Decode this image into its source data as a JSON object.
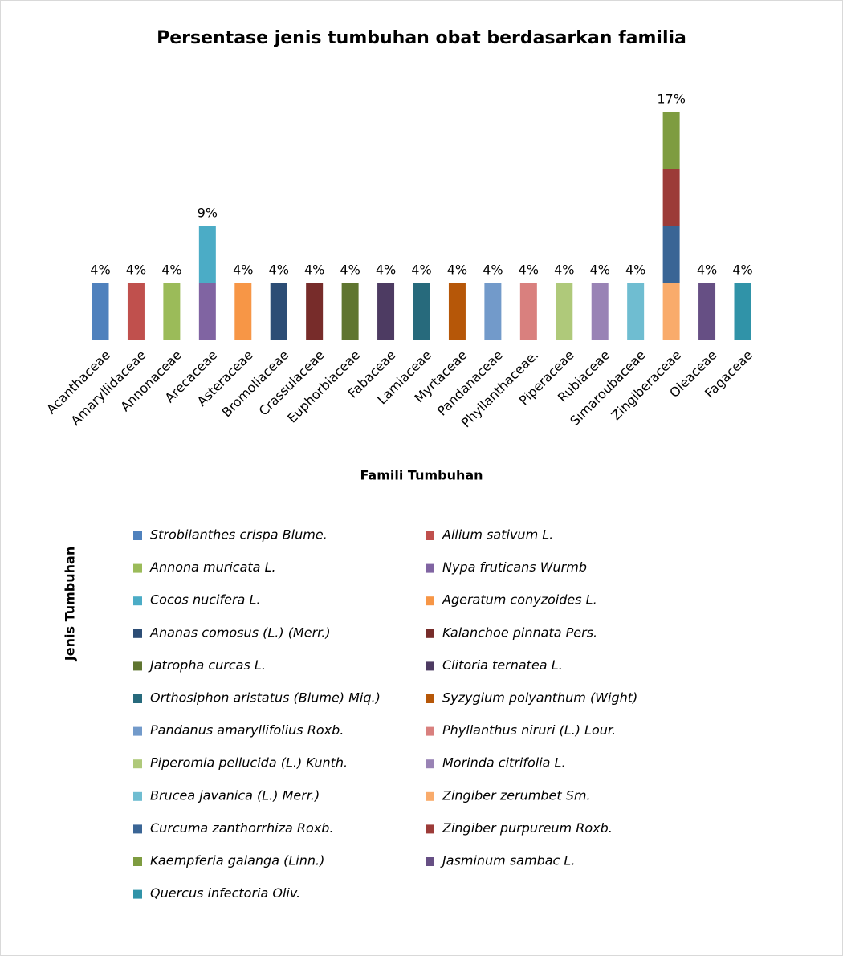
{
  "chart_data": {
    "type": "stacked_bar",
    "title": "Persentase jenis tumbuhan obat berdasarkan familia",
    "x_label": "Famili Tumbuhan",
    "legend_title": "Jenis Tumbuhan",
    "categories": [
      "Acanthaceae",
      "Amaryllidaceae",
      "Annonaceae",
      "Arecaceae",
      "Asteraceae",
      "Bromoliaceae",
      "Crassulaceae",
      "Euphorbiaceae",
      "Fabaceae",
      "Lamiaceae",
      "Myrtaceae",
      "Pandanaceae",
      "Phyllanthaceae.",
      "Piperaceae",
      "Rubiaceae",
      "Simaroubaceae",
      "Zingiberaceae",
      "Oleaceae",
      "Fagaceae"
    ],
    "total_labels": [
      "4%",
      "4%",
      "4%",
      "9%",
      "4%",
      "4%",
      "4%",
      "4%",
      "4%",
      "4%",
      "4%",
      "4%",
      "4%",
      "4%",
      "4%",
      "4%",
      "17%",
      "4%",
      "4%"
    ],
    "series": [
      {
        "name": "Strobilanthes crispa Blume.",
        "color": "#4f81bd",
        "values": [
          4.35,
          null,
          null,
          null,
          null,
          null,
          null,
          null,
          null,
          null,
          null,
          null,
          null,
          null,
          null,
          null,
          null,
          null,
          null
        ]
      },
      {
        "name": "Allium sativum L.",
        "color": "#c0504d",
        "values": [
          null,
          4.35,
          null,
          null,
          null,
          null,
          null,
          null,
          null,
          null,
          null,
          null,
          null,
          null,
          null,
          null,
          null,
          null,
          null
        ]
      },
      {
        "name": "Annona muricata L.",
        "color": "#9bbb59",
        "values": [
          null,
          null,
          4.35,
          null,
          null,
          null,
          null,
          null,
          null,
          null,
          null,
          null,
          null,
          null,
          null,
          null,
          null,
          null,
          null
        ]
      },
      {
        "name": "Nypa fruticans Wurmb",
        "color": "#8064a2",
        "values": [
          null,
          null,
          null,
          4.35,
          null,
          null,
          null,
          null,
          null,
          null,
          null,
          null,
          null,
          null,
          null,
          null,
          null,
          null,
          null
        ]
      },
      {
        "name": "Cocos nucifera L.",
        "color": "#4bacc6",
        "values": [
          null,
          null,
          null,
          4.35,
          null,
          null,
          null,
          null,
          null,
          null,
          null,
          null,
          null,
          null,
          null,
          null,
          null,
          null,
          null
        ]
      },
      {
        "name": "Ageratum conyzoides L.",
        "color": "#f79646",
        "values": [
          null,
          null,
          null,
          null,
          4.35,
          null,
          null,
          null,
          null,
          null,
          null,
          null,
          null,
          null,
          null,
          null,
          null,
          null,
          null
        ]
      },
      {
        "name": "Ananas comosus (L.) (Merr.)",
        "color": "#2c4d75",
        "values": [
          null,
          null,
          null,
          null,
          null,
          4.35,
          null,
          null,
          null,
          null,
          null,
          null,
          null,
          null,
          null,
          null,
          null,
          null,
          null
        ]
      },
      {
        "name": "Kalanchoe pinnata Pers.",
        "color": "#772c2a",
        "values": [
          null,
          null,
          null,
          null,
          null,
          null,
          4.35,
          null,
          null,
          null,
          null,
          null,
          null,
          null,
          null,
          null,
          null,
          null,
          null
        ]
      },
      {
        "name": "Jatropha curcas L.",
        "color": "#5f7530",
        "values": [
          null,
          null,
          null,
          null,
          null,
          null,
          null,
          4.35,
          null,
          null,
          null,
          null,
          null,
          null,
          null,
          null,
          null,
          null,
          null
        ]
      },
      {
        "name": "Clitoria ternatea L.",
        "color": "#4d3b62",
        "values": [
          null,
          null,
          null,
          null,
          null,
          null,
          null,
          null,
          4.35,
          null,
          null,
          null,
          null,
          null,
          null,
          null,
          null,
          null,
          null
        ]
      },
      {
        "name": "Orthosiphon aristatus (Blume) Miq.)",
        "color": "#276a7c",
        "values": [
          null,
          null,
          null,
          null,
          null,
          null,
          null,
          null,
          null,
          4.35,
          null,
          null,
          null,
          null,
          null,
          null,
          null,
          null,
          null
        ]
      },
      {
        "name": "Syzygium polyanthum (Wight)",
        "color": "#b65708",
        "values": [
          null,
          null,
          null,
          null,
          null,
          null,
          null,
          null,
          null,
          null,
          4.35,
          null,
          null,
          null,
          null,
          null,
          null,
          null,
          null
        ]
      },
      {
        "name": "Pandanus amaryllifolius Roxb.",
        "color": "#729aca",
        "values": [
          null,
          null,
          null,
          null,
          null,
          null,
          null,
          null,
          null,
          null,
          null,
          4.35,
          null,
          null,
          null,
          null,
          null,
          null,
          null
        ]
      },
      {
        "name": "Phyllanthus niruri (L.) Lour.",
        "color": "#d9807e",
        "values": [
          null,
          null,
          null,
          null,
          null,
          null,
          null,
          null,
          null,
          null,
          null,
          null,
          4.35,
          null,
          null,
          null,
          null,
          null,
          null
        ]
      },
      {
        "name": "Piperomia pellucida (L.) Kunth.",
        "color": "#afc97a",
        "values": [
          null,
          null,
          null,
          null,
          null,
          null,
          null,
          null,
          null,
          null,
          null,
          null,
          null,
          4.35,
          null,
          null,
          null,
          null,
          null
        ]
      },
      {
        "name": "Morinda citrifolia L.",
        "color": "#9983b5",
        "values": [
          null,
          null,
          null,
          null,
          null,
          null,
          null,
          null,
          null,
          null,
          null,
          null,
          null,
          null,
          4.35,
          null,
          null,
          null,
          null
        ]
      },
      {
        "name": "Brucea javanica (L.) Merr.)",
        "color": "#6fbdd1",
        "values": [
          null,
          null,
          null,
          null,
          null,
          null,
          null,
          null,
          null,
          null,
          null,
          null,
          null,
          null,
          null,
          4.35,
          null,
          null,
          null
        ]
      },
      {
        "name": "Zingiber zerumbet Sm.",
        "color": "#f9ab6b",
        "values": [
          null,
          null,
          null,
          null,
          null,
          null,
          null,
          null,
          null,
          null,
          null,
          null,
          null,
          null,
          null,
          null,
          4.35,
          null,
          null
        ]
      },
      {
        "name": "Curcuma zanthorrhiza Roxb.",
        "color": "#3a6595",
        "values": [
          null,
          null,
          null,
          null,
          null,
          null,
          null,
          null,
          null,
          null,
          null,
          null,
          null,
          null,
          null,
          null,
          4.35,
          null,
          null
        ]
      },
      {
        "name": "Zingiber purpureum Roxb.",
        "color": "#9c3b38",
        "values": [
          null,
          null,
          null,
          null,
          null,
          null,
          null,
          null,
          null,
          null,
          null,
          null,
          null,
          null,
          null,
          null,
          4.35,
          null,
          null
        ]
      },
      {
        "name": "Kaempferia galanga (Linn.)",
        "color": "#7e9c40",
        "values": [
          null,
          null,
          null,
          null,
          null,
          null,
          null,
          null,
          null,
          null,
          null,
          null,
          null,
          null,
          null,
          null,
          4.35,
          null,
          null
        ]
      },
      {
        "name": "Jasminum sambac L.",
        "color": "#664f84",
        "values": [
          null,
          null,
          null,
          null,
          null,
          null,
          null,
          null,
          null,
          null,
          null,
          null,
          null,
          null,
          null,
          null,
          null,
          4.35,
          null
        ]
      },
      {
        "name": "Quercus infectoria Oliv.",
        "color": "#3093a8",
        "values": [
          null,
          null,
          null,
          null,
          null,
          null,
          null,
          null,
          null,
          null,
          null,
          null,
          null,
          null,
          null,
          null,
          null,
          null,
          4.35
        ]
      }
    ]
  }
}
